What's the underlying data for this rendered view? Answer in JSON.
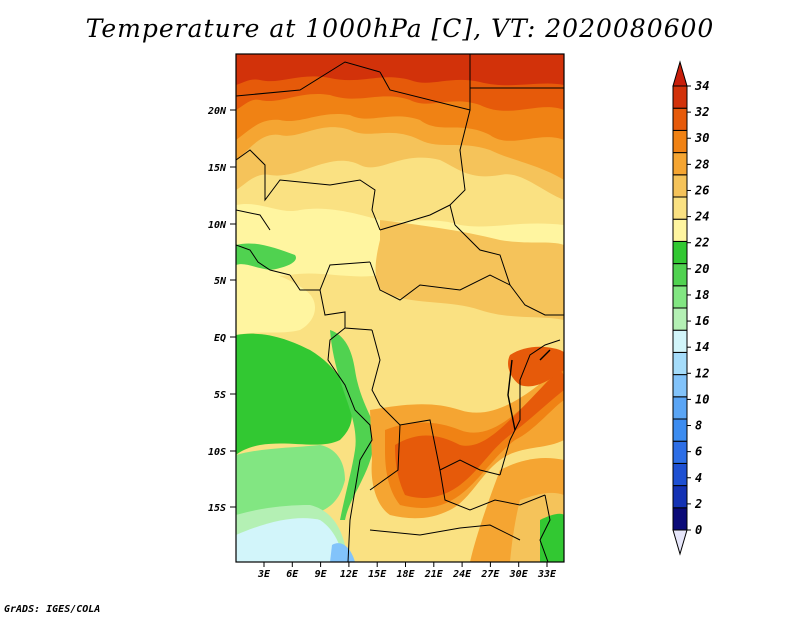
{
  "title": "Temperature at 1000hPa [C], VT: 2020080600",
  "credit": "GrADS: IGES/COLA",
  "map": {
    "lat_labels": [
      "20N",
      "15N",
      "10N",
      "5N",
      "EQ",
      "5S",
      "10S",
      "15S"
    ],
    "lon_labels": [
      "3E",
      "6E",
      "9E",
      "12E",
      "15E",
      "18E",
      "21E",
      "24E",
      "27E",
      "30E",
      "33E"
    ]
  },
  "colorbar": {
    "levels": [
      "0",
      "2",
      "4",
      "6",
      "8",
      "10",
      "12",
      "14",
      "16",
      "18",
      "20",
      "22",
      "24",
      "26",
      "28",
      "30",
      "32",
      "34"
    ],
    "colors": [
      "#0a0a78",
      "#1432b4",
      "#1e50d2",
      "#2d6ee6",
      "#3c8cf0",
      "#5aa5f5",
      "#82c3fa",
      "#a5dcfa",
      "#d2f5fa",
      "#b4f0b4",
      "#82e682",
      "#50d250",
      "#32c832",
      "#fff5a0",
      "#fae182",
      "#f5c35a",
      "#f5a532",
      "#f08214",
      "#e65a0a",
      "#d2320a",
      "#c81e0a",
      "#e6e6fa"
    ]
  }
}
